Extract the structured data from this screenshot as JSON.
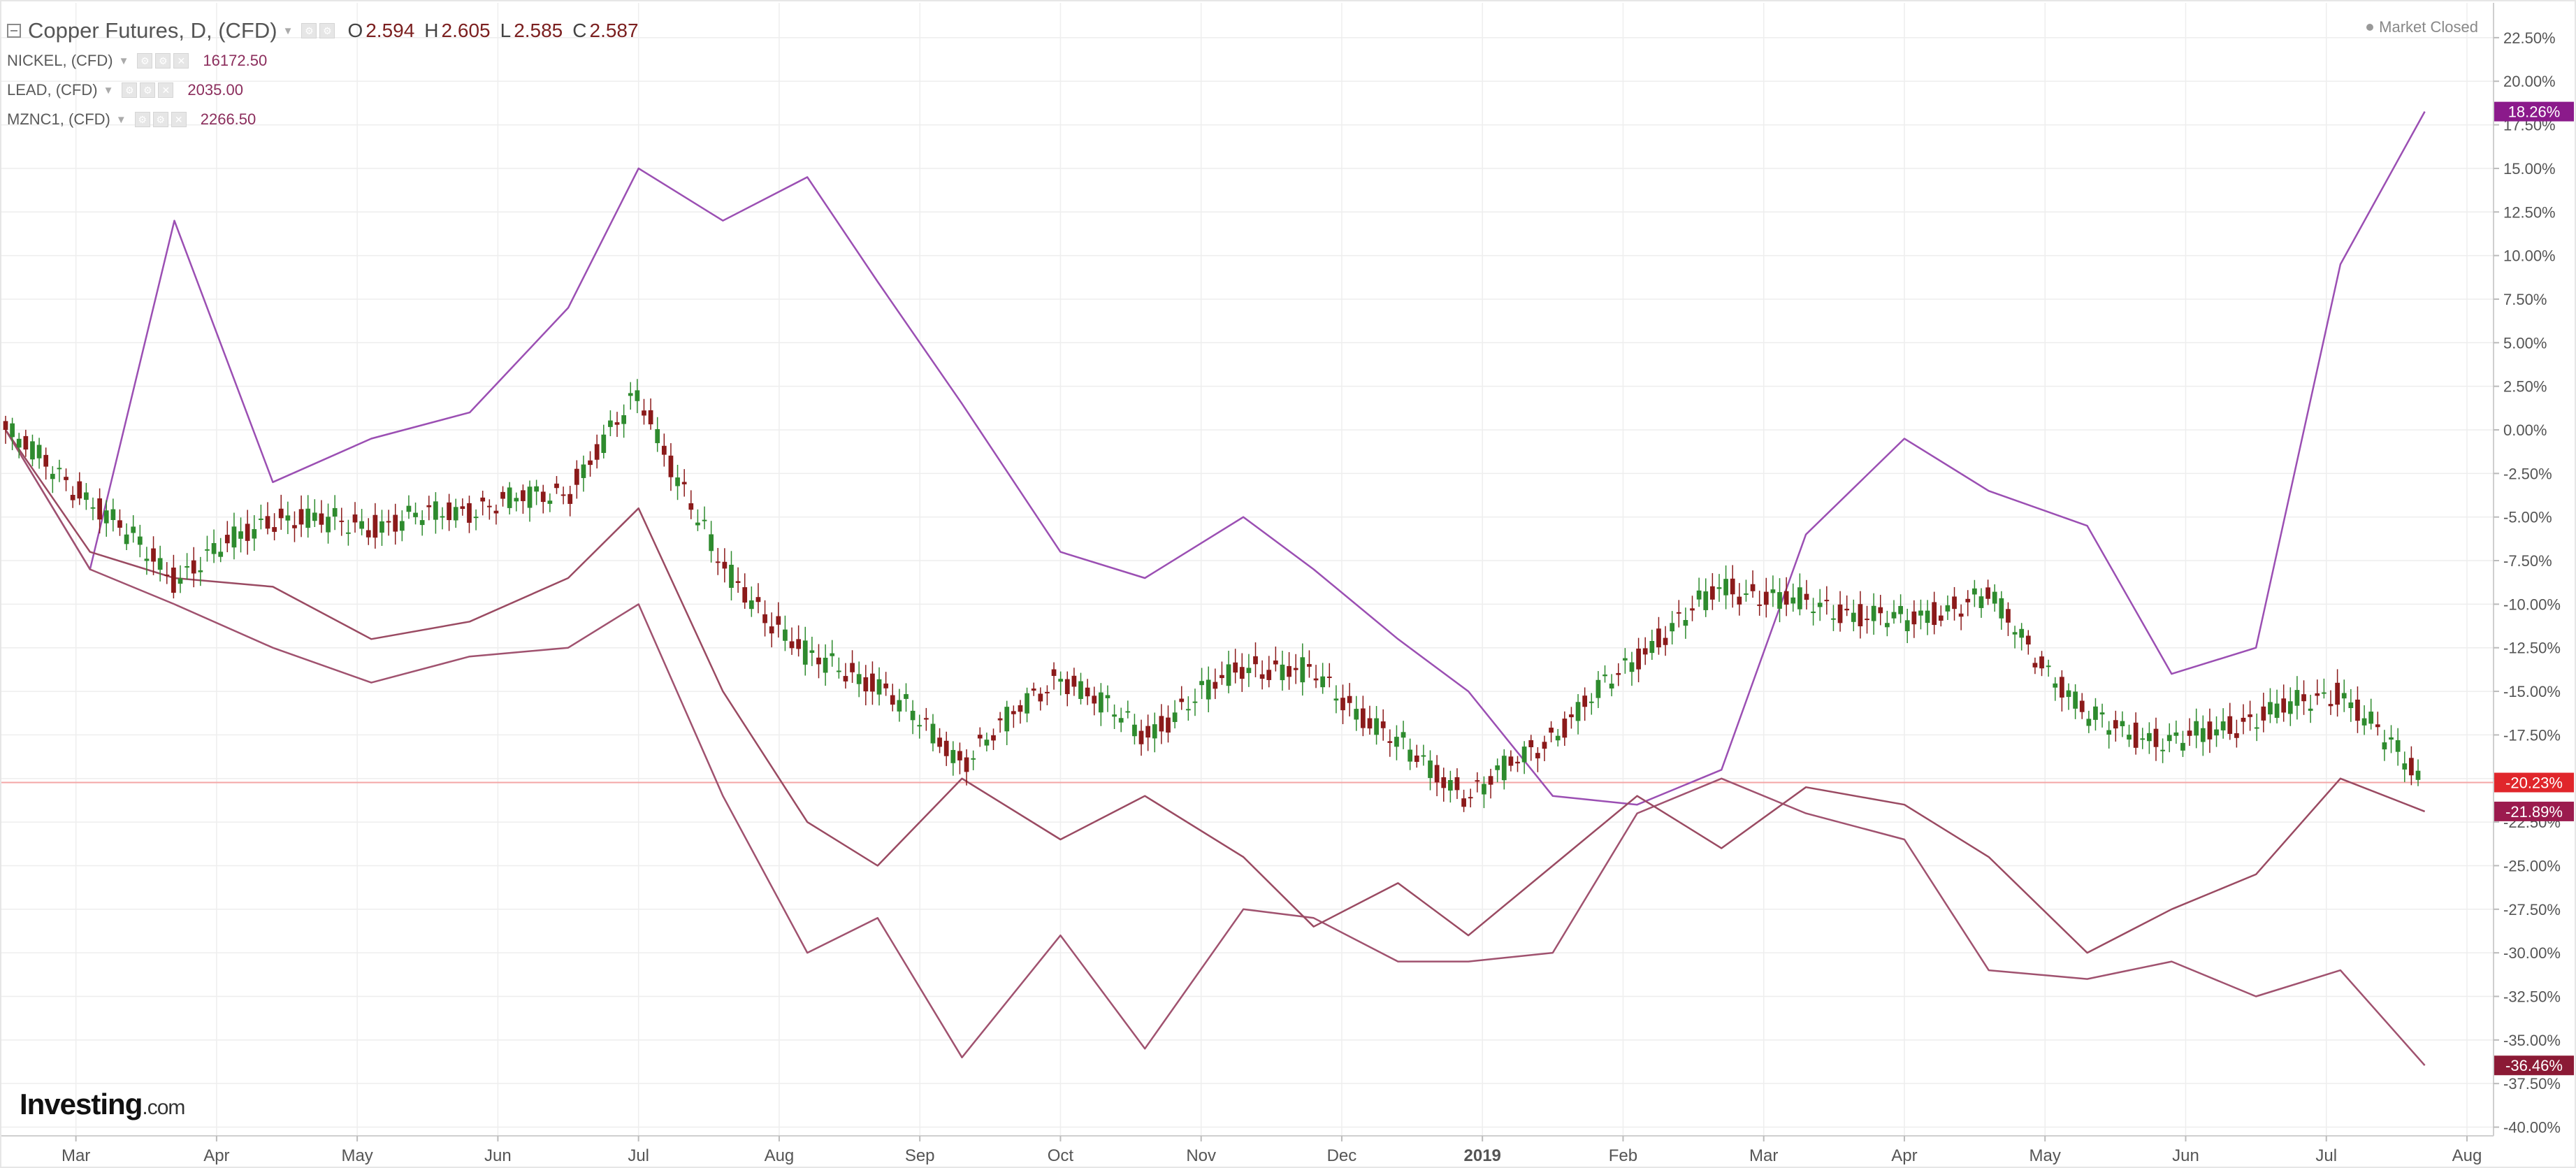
{
  "header": {
    "title": "Copper Futures, D, (CFD)",
    "ohlc": [
      {
        "label": "O",
        "value": "2.594"
      },
      {
        "label": "H",
        "value": "2.605"
      },
      {
        "label": "L",
        "value": "2.585"
      },
      {
        "label": "C",
        "value": "2.587"
      }
    ],
    "market_status": "Market Closed"
  },
  "compare_series": [
    {
      "name": "NICKEL, (CFD)",
      "value": "16172.50"
    },
    {
      "name": "LEAD, (CFD)",
      "value": "2035.00"
    },
    {
      "name": "MZNC1, (CFD)",
      "value": "2266.50"
    }
  ],
  "branding": {
    "logo": "Investing",
    "logo_suffix": ".com"
  },
  "colors": {
    "up": "#2e8b2e",
    "down": "#8b1a1a",
    "nickel": "#9b4fb3",
    "lead": "#a0526f",
    "zinc": "#9a4a62",
    "grid": "#eeeeee",
    "price_line": "#f4a6a6"
  },
  "icons": [
    "collapse-icon",
    "settings-icon",
    "format-icon",
    "close-icon",
    "status-dot-icon"
  ],
  "chart_data": {
    "type": "line",
    "xlabel": "",
    "ylabel": "",
    "x_ticks": [
      "Mar",
      "Apr",
      "May",
      "Jun",
      "Jul",
      "Aug",
      "Sep",
      "Oct",
      "Nov",
      "Dec",
      "2019",
      "Feb",
      "Mar",
      "Apr",
      "May",
      "Jun",
      "Jul",
      "Aug"
    ],
    "y_ticks": [
      "22.50%",
      "20.00%",
      "17.50%",
      "15.00%",
      "12.50%",
      "10.00%",
      "7.50%",
      "5.00%",
      "2.50%",
      "0.00%",
      "-2.50%",
      "-5.00%",
      "-7.50%",
      "-10.00%",
      "-12.50%",
      "-15.00%",
      "-17.50%",
      "-20.00%",
      "-22.50%",
      "-25.00%",
      "-27.50%",
      "-30.00%",
      "-32.50%",
      "-35.00%",
      "-37.50%",
      "-40.00%"
    ],
    "ylim": [
      -40.5,
      24.5
    ],
    "grid": true,
    "last_value_labels": [
      {
        "text": "18.26%",
        "value": 18.26,
        "color": "#8b1a8b"
      },
      {
        "text": "-20.23%",
        "value": -20.23,
        "color": "#e0262b"
      },
      {
        "text": "-21.89%",
        "value": -21.89,
        "color": "#9b1b4e"
      },
      {
        "text": "-36.46%",
        "value": -36.46,
        "color": "#8b1a35"
      }
    ],
    "series": [
      {
        "name": "NICKEL, (CFD)",
        "style": "line",
        "x": [
          0,
          0.6,
          1.2,
          1.9,
          2.6,
          3.3,
          4,
          4.5,
          5.1,
          5.7,
          6.2,
          6.8,
          7.5,
          8.1,
          8.8,
          9.3,
          9.9,
          10.4,
          11,
          11.6,
          12.2,
          12.8,
          13.5,
          14.1,
          14.8,
          15.4,
          16,
          16.6,
          17.2
        ],
        "y": [
          0,
          -8,
          12,
          -3,
          -0.5,
          1,
          7,
          15,
          12,
          14.5,
          8.5,
          1.5,
          -7,
          -8.5,
          -5,
          -8,
          -12,
          -15,
          -21,
          -21.5,
          -19.5,
          -6,
          -0.5,
          -3.5,
          -5.5,
          -14,
          -12.5,
          9.5,
          18.26
        ]
      },
      {
        "name": "LEAD, (CFD)",
        "style": "line",
        "x": [
          0,
          0.6,
          1.2,
          1.9,
          2.6,
          3.3,
          4,
          4.5,
          5.1,
          5.7,
          6.2,
          6.8,
          7.5,
          8.1,
          8.8,
          9.3,
          9.9,
          10.4,
          11,
          11.6,
          12.2,
          12.8,
          13.5,
          14.1,
          14.8,
          15.4,
          16,
          16.6,
          17.2
        ],
        "y": [
          0,
          -8,
          -10,
          -12.5,
          -14.5,
          -13,
          -12.5,
          -10,
          -21,
          -30,
          -28,
          -36,
          -29,
          -35.5,
          -27.5,
          -28,
          -30.5,
          -30.5,
          -30,
          -22,
          -20,
          -22,
          -23.5,
          -31,
          -31.5,
          -30.5,
          -32.5,
          -31,
          -36.46
        ]
      },
      {
        "name": "MZNC1, (CFD)",
        "style": "line",
        "x": [
          0,
          0.6,
          1.2,
          1.9,
          2.6,
          3.3,
          4,
          4.5,
          5.1,
          5.7,
          6.2,
          6.8,
          7.5,
          8.1,
          8.8,
          9.3,
          9.9,
          10.4,
          11,
          11.6,
          12.2,
          12.8,
          13.5,
          14.1,
          14.8,
          15.4,
          16,
          16.6,
          17.2
        ],
        "y": [
          0,
          -7,
          -8.5,
          -9,
          -12,
          -11,
          -8.5,
          -4.5,
          -15,
          -22.5,
          -25,
          -20,
          -23.5,
          -21,
          -24.5,
          -28.5,
          -26,
          -29,
          -25,
          -21,
          -24,
          -20.5,
          -21.5,
          -24.5,
          -30,
          -27.5,
          -25.5,
          -20,
          -21.89
        ]
      },
      {
        "name": "Copper Futures, D, (CFD)",
        "style": "candlestick",
        "x": [
          0,
          0.6,
          1.2,
          1.9,
          2.6,
          3.3,
          4,
          4.5,
          5.1,
          5.7,
          6.2,
          6.8,
          7.5,
          8.1,
          8.8,
          9.3,
          9.9,
          10.4,
          11,
          11.6,
          12.2,
          12.8,
          13.5,
          14.1,
          14.8,
          15.4,
          16,
          16.6,
          17.2
        ],
        "y": [
          0,
          -4,
          -8.5,
          -5,
          -5.5,
          -4.5,
          -3.5,
          2,
          -8,
          -13,
          -14.5,
          -19,
          -14,
          -17.5,
          -13.5,
          -14,
          -18,
          -21,
          -17.5,
          -13,
          -9,
          -10,
          -11,
          -9.5,
          -16.5,
          -18,
          -16.5,
          -15,
          -20.23
        ]
      }
    ]
  }
}
